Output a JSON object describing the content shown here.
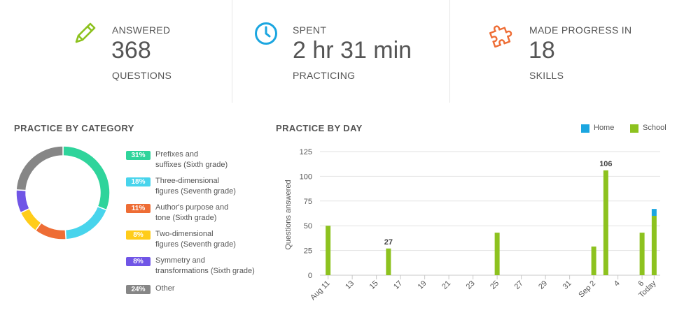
{
  "stats": [
    {
      "label": "ANSWERED",
      "value": "368",
      "sub": "QUESTIONS",
      "icon": "pencil-icon",
      "color": "#8dc21f"
    },
    {
      "label": "SPENT",
      "value": "2 hr 31 min",
      "sub": "PRACTICING",
      "icon": "clock-icon",
      "color": "#1ba6e0"
    },
    {
      "label": "MADE PROGRESS IN",
      "value": "18",
      "sub": "SKILLS",
      "icon": "puzzle-piece-icon",
      "color": "#ee6d35"
    }
  ],
  "category": {
    "title": "PRACTICE BY CATEGORY",
    "items": [
      {
        "pct": "31%",
        "line1": "Prefixes and",
        "line2": "suffixes (Sixth grade)",
        "color": "#2fd49b"
      },
      {
        "pct": "18%",
        "line1": "Three-dimensional",
        "line2": "figures (Seventh grade)",
        "color": "#48d4ec"
      },
      {
        "pct": "11%",
        "line1": "Author's purpose and",
        "line2": "tone (Sixth grade)",
        "color": "#ee6d35"
      },
      {
        "pct": "8%",
        "line1": "Two-dimensional",
        "line2": "figures (Seventh grade)",
        "color": "#ffcc1a"
      },
      {
        "pct": "8%",
        "line1": "Symmetry and",
        "line2": "transformations (Sixth grade)",
        "color": "#7055e6"
      },
      {
        "pct": "24%",
        "line1": "Other",
        "line2": "",
        "color": "#868686"
      }
    ]
  },
  "day": {
    "title": "PRACTICE BY DAY",
    "legend": [
      {
        "label": "Home",
        "color": "#1ba6e0"
      },
      {
        "label": "School",
        "color": "#8dc21f"
      }
    ]
  },
  "chart_data": [
    {
      "type": "pie",
      "title": "PRACTICE BY CATEGORY",
      "labels": [
        "Prefixes and suffixes (Sixth grade)",
        "Three-dimensional figures (Seventh grade)",
        "Author's purpose and tone (Sixth grade)",
        "Two-dimensional figures (Seventh grade)",
        "Symmetry and transformations (Sixth grade)",
        "Other"
      ],
      "values": [
        31,
        18,
        11,
        8,
        8,
        24
      ],
      "colors": [
        "#2fd49b",
        "#48d4ec",
        "#ee6d35",
        "#ffcc1a",
        "#7055e6",
        "#868686"
      ],
      "donut": true
    },
    {
      "type": "bar",
      "stacked": true,
      "title": "PRACTICE BY DAY",
      "ylabel": "Questions answered",
      "ylim": [
        0,
        125
      ],
      "yticks": [
        0,
        25,
        50,
        75,
        100,
        125
      ],
      "grid": true,
      "legend_position": "top-right",
      "categories": [
        "Aug 11",
        "12",
        "13",
        "14",
        "15",
        "16",
        "17",
        "18",
        "19",
        "20",
        "21",
        "22",
        "23",
        "24",
        "25",
        "26",
        "27",
        "28",
        "29",
        "30",
        "31",
        "Sep 1",
        "Sep 2",
        "3",
        "4",
        "5",
        "6",
        "Today"
      ],
      "tick_labels": [
        "Aug 11",
        "13",
        "15",
        "17",
        "19",
        "21",
        "23",
        "25",
        "27",
        "29",
        "31",
        "Sep 2",
        "4",
        "6",
        "Today"
      ],
      "series": [
        {
          "name": "Home",
          "color": "#1ba6e0",
          "values": [
            0,
            0,
            0,
            0,
            0,
            0,
            0,
            0,
            0,
            0,
            0,
            0,
            0,
            0,
            0,
            0,
            0,
            0,
            0,
            0,
            0,
            0,
            0,
            0,
            0,
            0,
            0,
            7
          ]
        },
        {
          "name": "School",
          "color": "#8dc21f",
          "values": [
            50,
            0,
            0,
            0,
            0,
            27,
            0,
            0,
            0,
            0,
            0,
            0,
            0,
            0,
            43,
            0,
            0,
            0,
            0,
            0,
            0,
            0,
            29,
            106,
            0,
            0,
            43,
            60
          ]
        }
      ],
      "data_labels": [
        {
          "category": "16",
          "text": "27"
        },
        {
          "category": "3",
          "text": "106"
        }
      ]
    }
  ]
}
